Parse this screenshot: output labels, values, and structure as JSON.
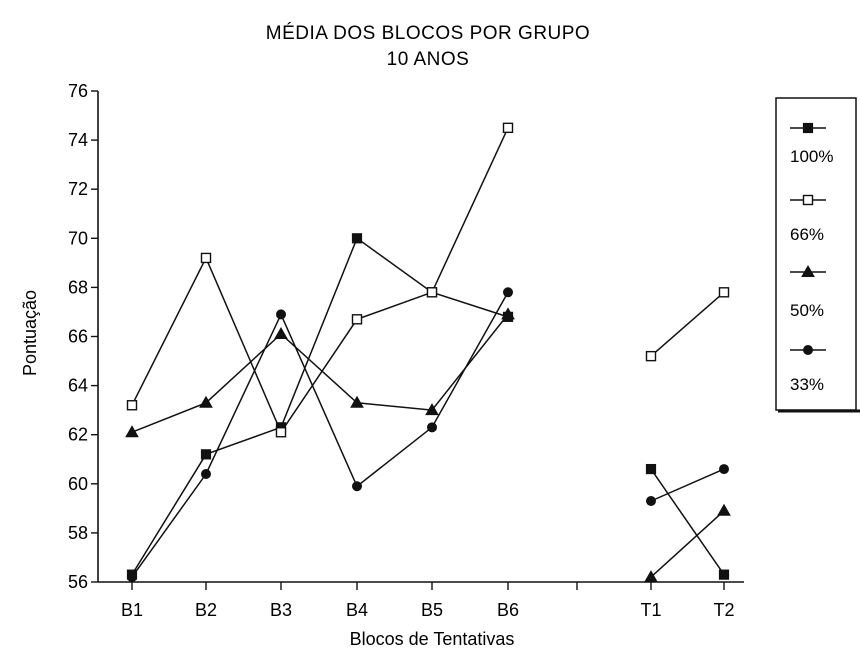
{
  "chart_data": {
    "type": "line",
    "title": "MÉDIA DOS BLOCOS POR GRUPO",
    "subtitle": "10 ANOS",
    "xlabel": "Blocos de Tentativas",
    "ylabel": "Pontuação",
    "ylim": [
      56,
      76
    ],
    "yticks": [
      56,
      58,
      60,
      62,
      64,
      66,
      68,
      70,
      72,
      74,
      76
    ],
    "categories": [
      "B1",
      "B2",
      "B3",
      "B4",
      "B5",
      "B6",
      "T1",
      "T2"
    ],
    "segments": [
      [
        0,
        5
      ],
      [
        6,
        7
      ]
    ],
    "grid": false,
    "legend": "right",
    "series": [
      {
        "name": "100%",
        "marker": "filled-square",
        "values": [
          56.3,
          61.2,
          62.3,
          70.0,
          67.8,
          66.8,
          60.6,
          56.3
        ]
      },
      {
        "name": "66%",
        "marker": "open-square",
        "values": [
          63.2,
          69.2,
          62.1,
          66.7,
          67.8,
          74.5,
          65.2,
          67.8
        ]
      },
      {
        "name": "50%",
        "marker": "triangle",
        "values": [
          62.1,
          63.3,
          66.1,
          63.3,
          63.0,
          66.9,
          56.2,
          58.9
        ]
      },
      {
        "name": "33%",
        "marker": "filled-circle",
        "values": [
          56.2,
          60.4,
          66.9,
          59.9,
          62.3,
          67.8,
          59.3,
          60.6
        ]
      }
    ]
  }
}
